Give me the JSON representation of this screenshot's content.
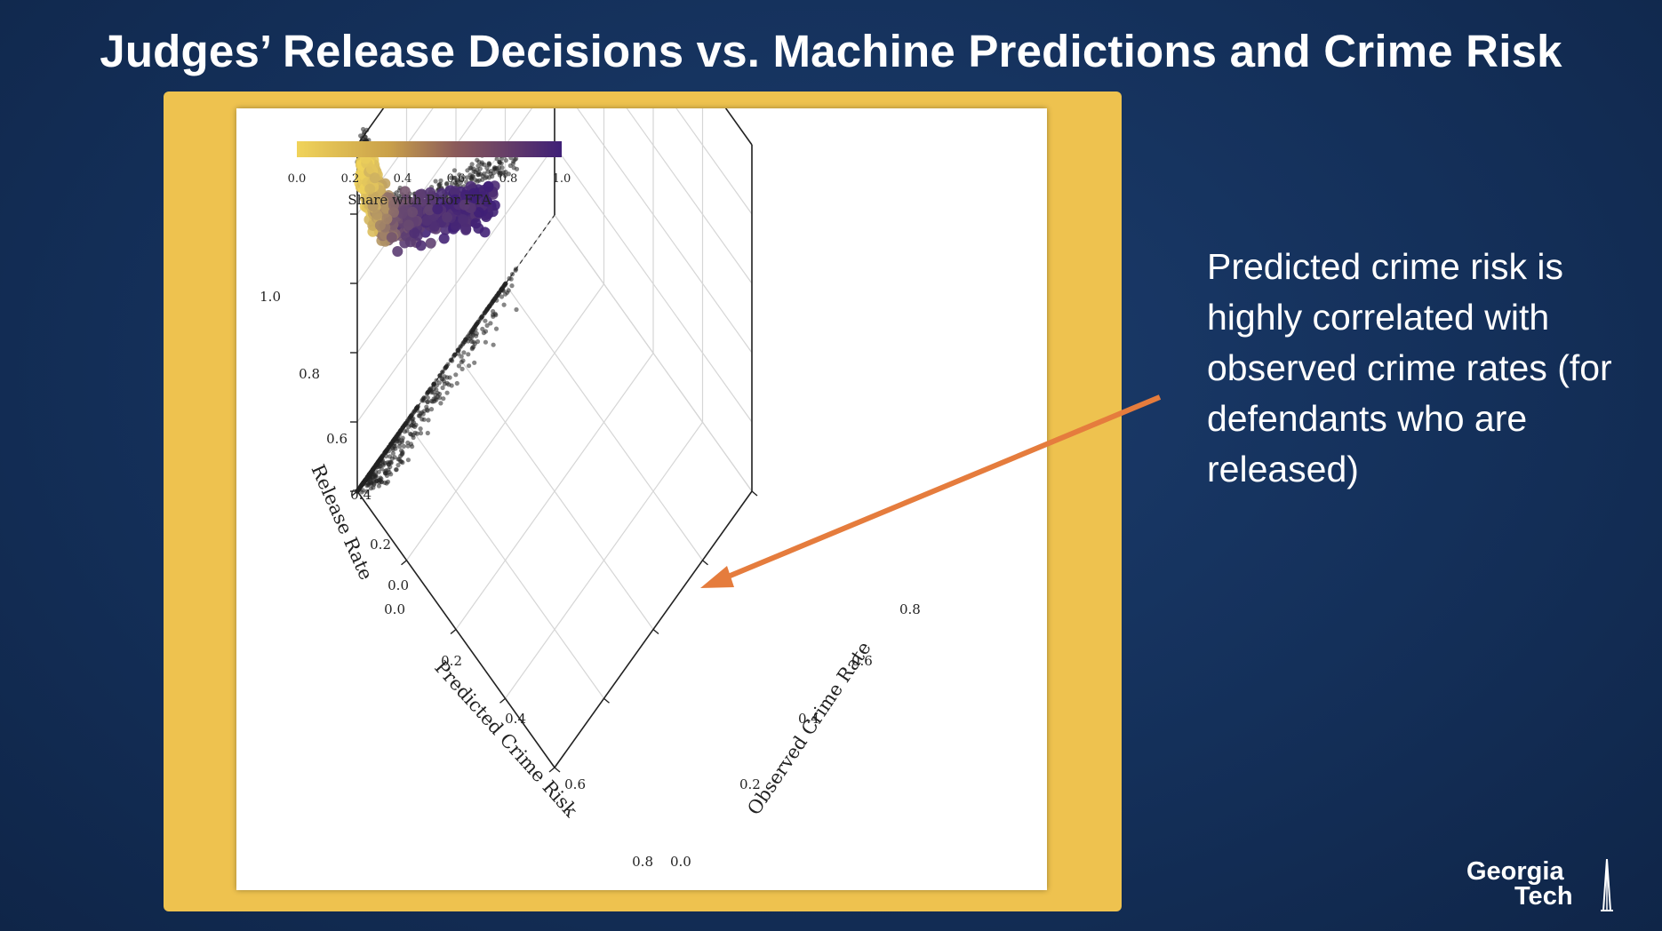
{
  "slide": {
    "title": "Judges’ Release Decisions vs. Machine Predictions and Crime Risk",
    "callout_text": "Predicted crime risk is highly correlated with observed crime rates (for defendants who are released)",
    "arrow_color": "#e57c3d",
    "frame_color": "#eec24f",
    "background_color": "#14305a",
    "logo": {
      "line1": "Georgia",
      "line2": "Tech"
    }
  },
  "chart_data": {
    "type": "scatter3d",
    "title": "",
    "axes": {
      "x": {
        "label": "Predicted Crime Risk",
        "range": [
          0,
          0.8
        ],
        "ticks": [
          "0.0",
          "0.2",
          "0.4",
          "0.6",
          "0.8"
        ]
      },
      "y": {
        "label": "Observed Crime Rate",
        "range": [
          0,
          0.8
        ],
        "ticks": [
          "0.0",
          "0.2",
          "0.4",
          "0.6",
          "0.8"
        ]
      },
      "z": {
        "label": "Release Rate",
        "range": [
          0,
          1.0
        ],
        "ticks": [
          "0.0",
          "0.2",
          "0.4",
          "0.6",
          "0.8",
          "1.0"
        ]
      }
    },
    "grid": true,
    "colorbar": {
      "label": "Share with Prior FTA",
      "ticks": [
        "0.0",
        "0.2",
        "0.4",
        "0.6",
        "0.8",
        "1.0"
      ],
      "color_low": "#f0d35a",
      "color_high": "#3f1f77",
      "placement": "top-left"
    },
    "series": [
      {
        "kind": "main",
        "color_by": "Share with Prior FTA",
        "trend": [
          [
            0.03,
            0.03,
            0.9,
            0.02
          ],
          [
            0.06,
            0.06,
            0.8,
            0.15
          ],
          [
            0.1,
            0.1,
            0.7,
            0.4
          ],
          [
            0.15,
            0.15,
            0.63,
            0.7
          ],
          [
            0.25,
            0.25,
            0.55,
            0.88
          ],
          [
            0.4,
            0.4,
            0.42,
            0.95
          ],
          [
            0.55,
            0.55,
            0.3,
            0.97
          ]
        ]
      },
      {
        "kind": "projection",
        "plane": "x-z",
        "color": "#222222",
        "trend": [
          [
            0.02,
            0.98
          ],
          [
            0.05,
            0.85
          ],
          [
            0.1,
            0.72
          ],
          [
            0.2,
            0.62
          ],
          [
            0.35,
            0.52
          ],
          [
            0.5,
            0.42
          ],
          [
            0.65,
            0.3
          ]
        ]
      },
      {
        "kind": "projection",
        "plane": "x-y",
        "color": "#222222",
        "trend": [
          [
            0.02,
            0.02
          ],
          [
            0.1,
            0.1
          ],
          [
            0.2,
            0.2
          ],
          [
            0.35,
            0.35
          ],
          [
            0.5,
            0.5
          ],
          [
            0.65,
            0.62
          ]
        ]
      }
    ]
  }
}
